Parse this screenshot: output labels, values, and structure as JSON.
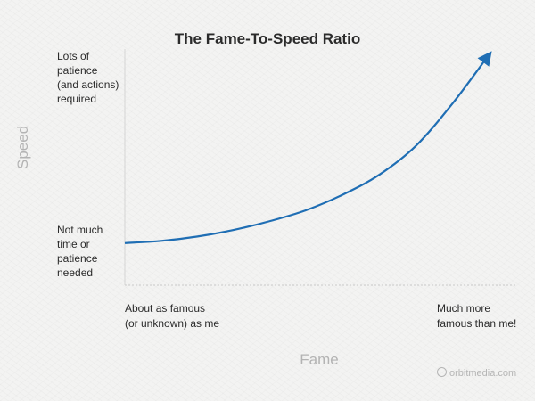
{
  "chart_data": {
    "type": "line",
    "title": "The Fame-To-Speed Ratio",
    "xlabel": "Fame",
    "ylabel": "Speed",
    "x_tick_labels": {
      "low": "About as famous\n(or unknown) as me",
      "high": "Much more\nfamous than me!"
    },
    "y_tick_labels": {
      "high": "Lots of\npatience\n(and actions)\nrequired",
      "low": "Not much\ntime or\npatience\nneeded"
    },
    "series": [
      {
        "x": [
          0,
          0.1,
          0.2,
          0.3,
          0.4,
          0.5,
          0.6,
          0.7,
          0.8,
          0.9,
          1.0
        ],
        "y": [
          0.15,
          0.16,
          0.18,
          0.21,
          0.25,
          0.3,
          0.37,
          0.46,
          0.59,
          0.78,
          1.0
        ]
      }
    ],
    "xlim": [
      0,
      1
    ],
    "ylim": [
      0,
      1
    ],
    "grid": false,
    "line_color": "#1f6eb4",
    "arrowhead": true
  },
  "watermark": "orbitmedia.com",
  "colors": {
    "background": "#f3f3f2",
    "curve": "#1f6eb4",
    "axis_title": "#b3b3b3"
  }
}
